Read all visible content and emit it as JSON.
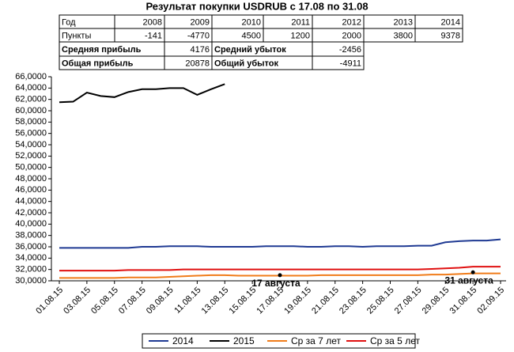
{
  "title": "Результат покупки USDRUB с 17.08 по 31.08",
  "table": {
    "rows": [
      [
        "Год",
        "2008",
        "2009",
        "2010",
        "2011",
        "2012",
        "2013",
        "2014"
      ],
      [
        "Пункты",
        "-141",
        "-4770",
        "4500",
        "1200",
        "2000",
        "3800",
        "9378"
      ],
      [
        "Средняя прибыль",
        "4176",
        "Средний убыток",
        "-2456"
      ],
      [
        "Общая прибыль",
        "20878",
        "Общий убыток",
        "-4911"
      ]
    ]
  },
  "chart_data": {
    "type": "line",
    "categories": [
      "01.08.15",
      null,
      "03.08.15",
      null,
      "05.08.15",
      null,
      "07.08.15",
      null,
      "09.08.15",
      null,
      "11.08.15",
      null,
      "13.08.15",
      null,
      "15.08.15",
      null,
      "17.08.15",
      null,
      "19.08.15",
      null,
      "21.08.15",
      null,
      "23.08.15",
      null,
      "25.08.15",
      null,
      "27.08.15",
      null,
      "29.08.15",
      null,
      "31.08.15",
      null,
      "02.09.15"
    ],
    "series": [
      {
        "name": "2014",
        "color": "#1f3a93",
        "values": [
          35.8,
          35.8,
          35.8,
          35.8,
          35.8,
          35.8,
          36.0,
          36.0,
          36.1,
          36.1,
          36.1,
          36.0,
          36.0,
          36.0,
          36.0,
          36.1,
          36.1,
          36.1,
          36.0,
          36.0,
          36.1,
          36.1,
          36.0,
          36.1,
          36.1,
          36.1,
          36.2,
          36.2,
          36.8,
          37.0,
          37.1,
          37.1,
          37.3
        ]
      },
      {
        "name": "2015",
        "color": "#000000",
        "values": [
          61.5,
          61.6,
          63.2,
          62.6,
          62.4,
          63.3,
          63.8,
          63.8,
          64.0,
          64.0,
          62.8,
          63.8,
          64.7,
          null,
          null,
          null,
          null,
          null,
          null,
          null,
          null,
          null,
          null,
          null,
          null,
          null,
          null,
          null,
          null,
          null,
          null,
          null,
          null
        ]
      },
      {
        "name": "Ср за 7 лет",
        "color": "#f07c1a",
        "values": [
          30.5,
          30.5,
          30.5,
          30.5,
          30.5,
          30.6,
          30.6,
          30.6,
          30.7,
          30.8,
          30.9,
          31.0,
          31.0,
          30.9,
          30.9,
          30.9,
          30.9,
          30.9,
          30.9,
          31.0,
          31.0,
          31.0,
          31.0,
          31.0,
          31.0,
          31.0,
          31.0,
          31.1,
          31.1,
          31.2,
          31.3,
          31.3,
          31.3
        ]
      },
      {
        "name": "Ср за 5 лет",
        "color": "#e01010",
        "values": [
          31.8,
          31.8,
          31.8,
          31.8,
          31.8,
          31.9,
          31.9,
          31.9,
          31.9,
          32.0,
          32.0,
          32.0,
          32.0,
          32.0,
          32.0,
          32.0,
          32.0,
          32.0,
          32.0,
          32.0,
          32.0,
          32.0,
          32.0,
          32.0,
          32.0,
          32.0,
          32.0,
          32.1,
          32.2,
          32.3,
          32.5,
          32.5,
          32.5
        ]
      }
    ],
    "annotations": [
      {
        "text": "17 августа",
        "x": "17.08.15",
        "y": 31.0
      },
      {
        "text": "31 августа",
        "x": "31.08.15",
        "y": 31.5
      }
    ],
    "ylim": [
      30,
      66
    ],
    "yticks": [
      {
        "value": 30,
        "label": "30,0000"
      },
      {
        "value": 32,
        "label": "32,0000"
      },
      {
        "value": 34,
        "label": "34,0000"
      },
      {
        "value": 36,
        "label": "36,0000"
      },
      {
        "value": 38,
        "label": "38,0000"
      },
      {
        "value": 40,
        "label": "40,0000"
      },
      {
        "value": 42,
        "label": "42,0000"
      },
      {
        "value": 44,
        "label": "44,0000"
      },
      {
        "value": 46,
        "label": "46,0000"
      },
      {
        "value": 48,
        "label": "48,0000"
      },
      {
        "value": 50,
        "label": "50,0000"
      },
      {
        "value": 52,
        "label": "52,0000"
      },
      {
        "value": 54,
        "label": "54,0000"
      },
      {
        "value": 56,
        "label": "56,0000"
      },
      {
        "value": 58,
        "label": "58,0000"
      },
      {
        "value": 60,
        "label": "60,0000"
      },
      {
        "value": 62,
        "label": "62,0000"
      },
      {
        "value": 64,
        "label": "64,0000"
      },
      {
        "value": 66,
        "label": "66,0000"
      }
    ],
    "grid": false,
    "legend": "bottom"
  }
}
